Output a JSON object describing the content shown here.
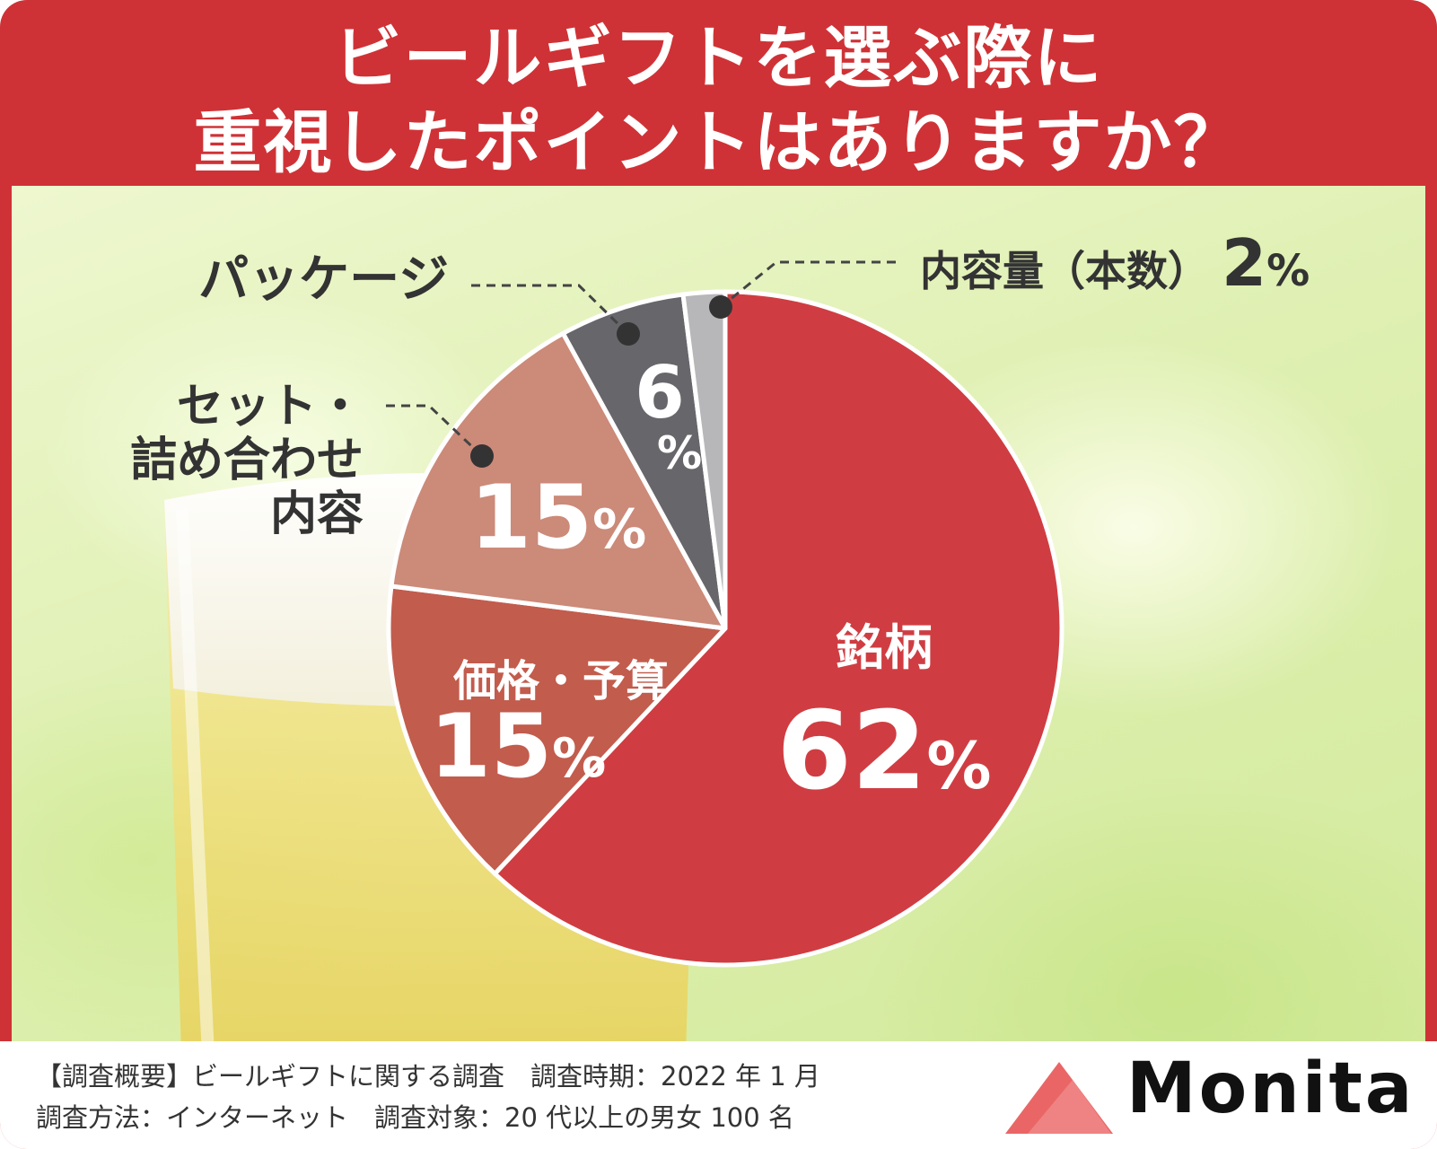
{
  "title": {
    "line1": "ビールギフトを選ぶ際に",
    "line2": "重視したポイントはありますか？"
  },
  "chart_data": {
    "type": "pie",
    "title": "ビールギフトを選ぶ際に重視したポイントはありますか？",
    "unit": "%",
    "slices": [
      {
        "label": "銘柄",
        "value": 62,
        "value_text": "62",
        "color": "#cf3d42"
      },
      {
        "label": "価格・予算",
        "value": 15,
        "value_text": "15",
        "color": "#c25c4d"
      },
      {
        "label": "セット・詰め合わせ内容",
        "label_lines": [
          "セット・",
          "詰め合わせ",
          "内容"
        ],
        "value": 15,
        "value_text": "15",
        "color": "#cc8a79"
      },
      {
        "label": "パッケージ",
        "value": 6,
        "value_text": "6",
        "color": "#66666b"
      },
      {
        "label": "内容量（本数）",
        "value": 2,
        "value_text": "2",
        "color": "#b7b7ba"
      }
    ],
    "start": "12 o'clock",
    "direction": "clockwise"
  },
  "footer": {
    "line1": "【調査概要】ビールギフトに関する調査　調査時期：2022 年 1 月",
    "line2": "調査方法：インターネット　調査対象：20 代以上の男女 100 名"
  },
  "brand": {
    "name": "Monita",
    "color": "#e85555"
  }
}
